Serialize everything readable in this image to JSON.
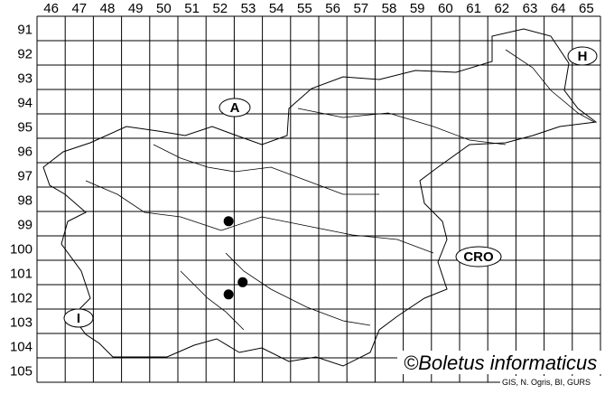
{
  "grid": {
    "columns": [
      "46",
      "47",
      "48",
      "49",
      "50",
      "51",
      "52",
      "53",
      "54",
      "55",
      "56",
      "57",
      "58",
      "59",
      "60",
      "61",
      "62",
      "63",
      "64",
      "65"
    ],
    "rows": [
      "91",
      "92",
      "93",
      "94",
      "95",
      "96",
      "97",
      "98",
      "99",
      "100",
      "101",
      "102",
      "103",
      "104",
      "105"
    ]
  },
  "country_labels": {
    "austria": "A",
    "hungary": "H",
    "croatia": "CRO",
    "italy": "I"
  },
  "records": [
    {
      "column": 52,
      "row": 99,
      "col_pos": 52.8,
      "row_pos": 99.4
    },
    {
      "column": 53,
      "row": 101,
      "col_pos": 53.3,
      "row_pos": 101.9
    },
    {
      "column": 52,
      "row": 102,
      "col_pos": 52.8,
      "row_pos": 102.4
    }
  ],
  "copyright": "©Boletus informaticus",
  "credit": "GIS, N. Ogris, BI, GURS",
  "colors": {
    "lines": "#000000",
    "points": "#000000",
    "background": "#ffffff"
  }
}
